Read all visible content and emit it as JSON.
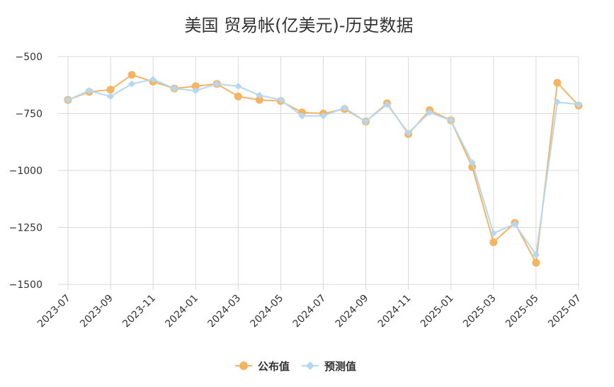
{
  "chart_data": {
    "type": "line",
    "title": "美国 贸易帐(亿美元)-历史数据",
    "xlabel": "",
    "ylabel": "",
    "ylim": [
      -1500,
      -500
    ],
    "yticks": [
      -500,
      -750,
      -1000,
      -1250,
      -1500
    ],
    "ytick_labels": [
      "−500",
      "−750",
      "−1000",
      "−1250",
      "−1500"
    ],
    "x": [
      "2023-07",
      "2023-08",
      "2023-09",
      "2023-10",
      "2023-11",
      "2023-12",
      "2024-01",
      "2024-02",
      "2024-03",
      "2024-04",
      "2024-05",
      "2024-06",
      "2024-07",
      "2024-08",
      "2024-09",
      "2024-10",
      "2024-11",
      "2024-12",
      "2025-01",
      "2025-02",
      "2025-03",
      "2025-04",
      "2025-05",
      "2025-06",
      "2025-07"
    ],
    "xtick_labels": [
      "2023-07",
      "2023-09",
      "2023-11",
      "2024-01",
      "2024-03",
      "2024-05",
      "2024-07",
      "2024-09",
      "2024-11",
      "2025-01",
      "2025-03",
      "2025-05",
      "2025-07"
    ],
    "series": [
      {
        "name": "公布值",
        "color": "#f5b461",
        "marker": "circle",
        "values": [
          -690,
          -655,
          -645,
          -580,
          -610,
          -640,
          -630,
          -620,
          -675,
          -690,
          -695,
          -745,
          -750,
          -730,
          -785,
          -705,
          -840,
          -735,
          -780,
          -985,
          -1315,
          -1230,
          -1405,
          -615,
          -715
        ]
      },
      {
        "name": "预测值",
        "color": "#b6d7f0",
        "marker": "diamond",
        "values": [
          -690,
          -650,
          -675,
          -620,
          -600,
          -640,
          -650,
          -620,
          -630,
          -670,
          -690,
          -760,
          -760,
          -725,
          -785,
          -710,
          -835,
          -745,
          -780,
          -965,
          -1275,
          -1235,
          -1370,
          -700,
          -710
        ]
      }
    ],
    "grid": true,
    "legend": "bottom-center"
  }
}
